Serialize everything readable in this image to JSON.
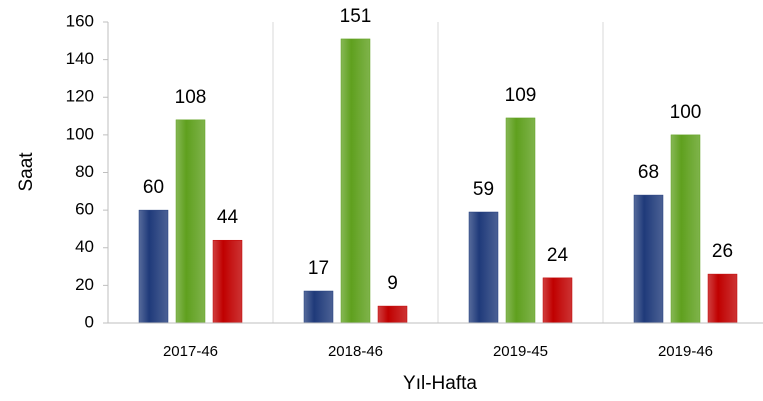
{
  "chart_data": {
    "type": "bar",
    "x_label": "Yıl-Hafta",
    "y_label": "Saat",
    "categories": [
      "2017-46",
      "2018-46",
      "2019-45",
      "2019-46"
    ],
    "series": [
      {
        "color": "#1f3a7a",
        "values": [
          60,
          17,
          59,
          68
        ]
      },
      {
        "color": "#5fa01e",
        "values": [
          108,
          151,
          109,
          100
        ]
      },
      {
        "color": "#c00000",
        "values": [
          44,
          9,
          24,
          26
        ]
      }
    ],
    "ylim": [
      0,
      160
    ],
    "yticks": [
      0,
      20,
      40,
      60,
      80,
      100,
      120,
      140,
      160
    ],
    "grid": true
  }
}
